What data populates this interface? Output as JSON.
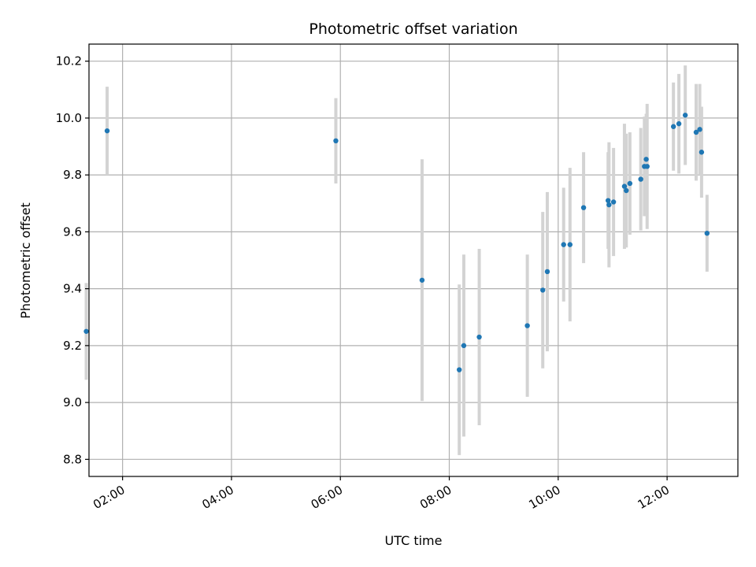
{
  "chart_data": {
    "type": "scatter",
    "title": "Photometric offset variation",
    "xlabel": "UTC time",
    "ylabel": "Photometric offset",
    "x_unit": "hours UTC",
    "xlim": [
      "01:23",
      "13:18"
    ],
    "ylim": [
      8.74,
      10.26
    ],
    "x_ticks": [
      "02:00",
      "04:00",
      "06:00",
      "08:00",
      "10:00",
      "12:00"
    ],
    "y_ticks": [
      "8.8",
      "9.0",
      "9.2",
      "9.4",
      "9.6",
      "9.8",
      "10.0",
      "10.2"
    ],
    "grid": true,
    "legend": "none",
    "colors": {
      "point": "#1f77b4",
      "errorbar": "#d3d3d3",
      "grid": "#b0b0b0"
    },
    "points": [
      {
        "x": "01:20",
        "y": 9.25,
        "err": 0.17
      },
      {
        "x": "01:43",
        "y": 9.955,
        "err": 0.155
      },
      {
        "x": "05:55",
        "y": 9.92,
        "err": 0.15
      },
      {
        "x": "07:30",
        "y": 9.43,
        "err": 0.425
      },
      {
        "x": "08:11",
        "y": 9.115,
        "err": 0.3
      },
      {
        "x": "08:16",
        "y": 9.2,
        "err": 0.32
      },
      {
        "x": "08:33",
        "y": 9.23,
        "err": 0.31
      },
      {
        "x": "09:26",
        "y": 9.27,
        "err": 0.25
      },
      {
        "x": "09:43",
        "y": 9.395,
        "err": 0.275
      },
      {
        "x": "09:48",
        "y": 9.46,
        "err": 0.28
      },
      {
        "x": "10:06",
        "y": 9.555,
        "err": 0.2
      },
      {
        "x": "10:13",
        "y": 9.555,
        "err": 0.27
      },
      {
        "x": "10:28",
        "y": 9.685,
        "err": 0.195
      },
      {
        "x": "10:55",
        "y": 9.71,
        "err": 0.17
      },
      {
        "x": "10:56",
        "y": 9.695,
        "err": 0.22
      },
      {
        "x": "11:01",
        "y": 9.705,
        "err": 0.19
      },
      {
        "x": "11:13",
        "y": 9.76,
        "err": 0.22
      },
      {
        "x": "11:15",
        "y": 9.745,
        "err": 0.2
      },
      {
        "x": "11:19",
        "y": 9.77,
        "err": 0.18
      },
      {
        "x": "11:31",
        "y": 9.785,
        "err": 0.18
      },
      {
        "x": "11:35",
        "y": 9.83,
        "err": 0.175
      },
      {
        "x": "11:37",
        "y": 9.855,
        "err": 0.16
      },
      {
        "x": "11:38",
        "y": 9.83,
        "err": 0.22
      },
      {
        "x": "12:07",
        "y": 9.97,
        "err": 0.155
      },
      {
        "x": "12:13",
        "y": 9.98,
        "err": 0.175
      },
      {
        "x": "12:20",
        "y": 10.01,
        "err": 0.175
      },
      {
        "x": "12:32",
        "y": 9.95,
        "err": 0.17
      },
      {
        "x": "12:36",
        "y": 9.96,
        "err": 0.16
      },
      {
        "x": "12:38",
        "y": 9.88,
        "err": 0.16
      },
      {
        "x": "12:44",
        "y": 9.595,
        "err": 0.135
      }
    ]
  }
}
